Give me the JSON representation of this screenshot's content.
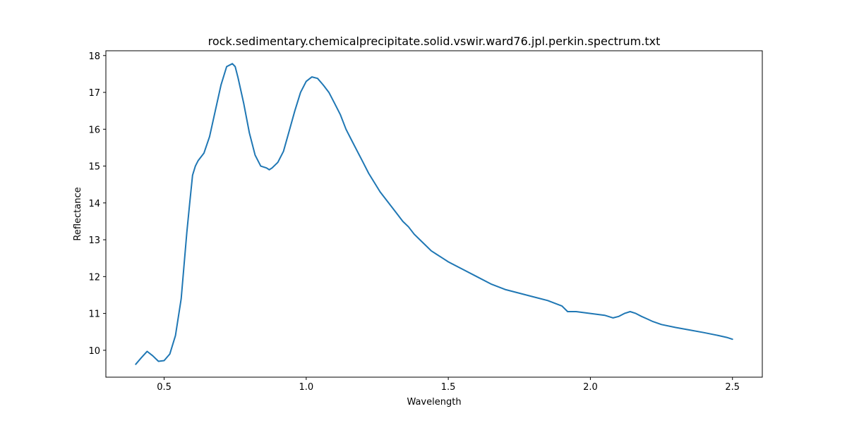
{
  "chart_data": {
    "type": "line",
    "title": "rock.sedimentary.chemicalprecipitate.solid.vswir.ward76.jpl.perkin.spectrum.txt",
    "xlabel": "Wavelength",
    "ylabel": "Reflectance",
    "xlim": [
      0.295,
      2.605
    ],
    "ylim": [
      9.27,
      18.13
    ],
    "x_ticks": [
      0.5,
      1.0,
      1.5,
      2.0,
      2.5
    ],
    "x_tick_labels": [
      "0.5",
      "1.0",
      "1.5",
      "2.0",
      "2.5"
    ],
    "y_ticks": [
      10,
      11,
      12,
      13,
      14,
      15,
      16,
      17,
      18
    ],
    "y_tick_labels": [
      "10",
      "11",
      "12",
      "13",
      "14",
      "15",
      "16",
      "17",
      "18"
    ],
    "grid": false,
    "legend": false,
    "series": [
      {
        "color": "#1f77b4",
        "x": [
          0.4,
          0.42,
          0.44,
          0.46,
          0.48,
          0.5,
          0.52,
          0.54,
          0.56,
          0.58,
          0.59,
          0.6,
          0.61,
          0.62,
          0.64,
          0.66,
          0.68,
          0.7,
          0.72,
          0.74,
          0.75,
          0.76,
          0.78,
          0.8,
          0.82,
          0.84,
          0.86,
          0.87,
          0.88,
          0.9,
          0.92,
          0.94,
          0.96,
          0.98,
          1.0,
          1.02,
          1.04,
          1.06,
          1.08,
          1.1,
          1.12,
          1.14,
          1.16,
          1.18,
          1.2,
          1.22,
          1.24,
          1.26,
          1.28,
          1.3,
          1.32,
          1.34,
          1.36,
          1.38,
          1.4,
          1.42,
          1.44,
          1.46,
          1.48,
          1.5,
          1.55,
          1.6,
          1.65,
          1.7,
          1.75,
          1.8,
          1.85,
          1.9,
          1.92,
          1.95,
          2.0,
          2.05,
          2.08,
          2.1,
          2.12,
          2.14,
          2.16,
          2.18,
          2.2,
          2.22,
          2.25,
          2.3,
          2.35,
          2.4,
          2.45,
          2.48,
          2.5
        ],
        "y": [
          9.62,
          9.8,
          9.97,
          9.85,
          9.7,
          9.72,
          9.9,
          10.4,
          11.4,
          13.2,
          14.0,
          14.75,
          15.0,
          15.15,
          15.35,
          15.8,
          16.5,
          17.2,
          17.7,
          17.78,
          17.7,
          17.4,
          16.7,
          15.9,
          15.3,
          15.0,
          14.95,
          14.9,
          14.95,
          15.1,
          15.4,
          15.95,
          16.5,
          17.0,
          17.3,
          17.42,
          17.38,
          17.2,
          17.0,
          16.7,
          16.4,
          16.0,
          15.7,
          15.4,
          15.1,
          14.8,
          14.55,
          14.3,
          14.1,
          13.9,
          13.7,
          13.5,
          13.35,
          13.15,
          13.0,
          12.85,
          12.7,
          12.6,
          12.5,
          12.4,
          12.2,
          12.0,
          11.8,
          11.65,
          11.55,
          11.45,
          11.35,
          11.2,
          11.05,
          11.05,
          11.0,
          10.95,
          10.88,
          10.92,
          11.0,
          11.05,
          11.0,
          10.92,
          10.85,
          10.78,
          10.7,
          10.62,
          10.55,
          10.48,
          10.4,
          10.35,
          10.3
        ]
      }
    ]
  }
}
